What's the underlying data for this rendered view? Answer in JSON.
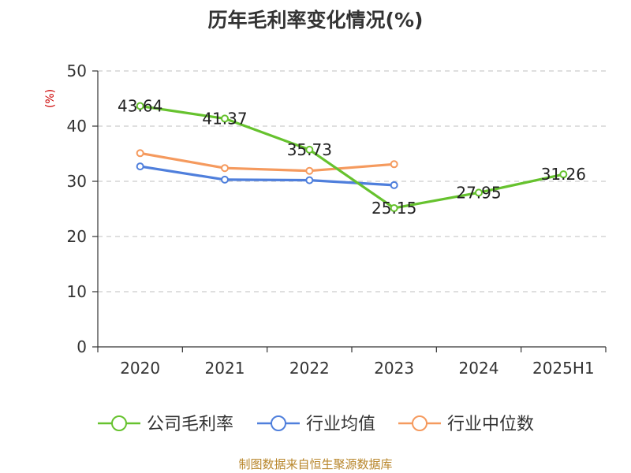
{
  "title": "历年毛利率变化情况(%)",
  "source_note": "制图数据来自恒生聚源数据库",
  "colors": {
    "company": "#66c22e",
    "industry_mean": "#4f7fdc",
    "industry_median": "#f59a5e",
    "grid": "#cccccc",
    "axis": "#333333",
    "ylabel": "#cc0000",
    "source": "#b8862b"
  },
  "chart_data": {
    "type": "line",
    "title": "历年毛利率变化情况(%)",
    "xlabel": "",
    "ylabel": "(%)",
    "ylim": [
      0,
      50
    ],
    "yticks": [
      "0",
      "10",
      "20",
      "30",
      "40",
      "50"
    ],
    "categories": [
      "2020",
      "2021",
      "2022",
      "2023",
      "2024",
      "2025H1"
    ],
    "grid": true,
    "legend_position": "bottom",
    "series": [
      {
        "name": "公司毛利率",
        "color": "#66c22e",
        "values": [
          43.64,
          41.37,
          35.73,
          25.15,
          27.95,
          31.26
        ],
        "labels": [
          "43.64",
          "41.37",
          "35.73",
          "25.15",
          "27.95",
          "31.26"
        ]
      },
      {
        "name": "行业均值",
        "color": "#4f7fdc",
        "values": [
          32.7,
          30.3,
          30.2,
          29.3,
          null,
          null
        ]
      },
      {
        "name": "行业中位数",
        "color": "#f59a5e",
        "values": [
          35.1,
          32.4,
          31.9,
          33.1,
          null,
          null
        ]
      }
    ]
  }
}
